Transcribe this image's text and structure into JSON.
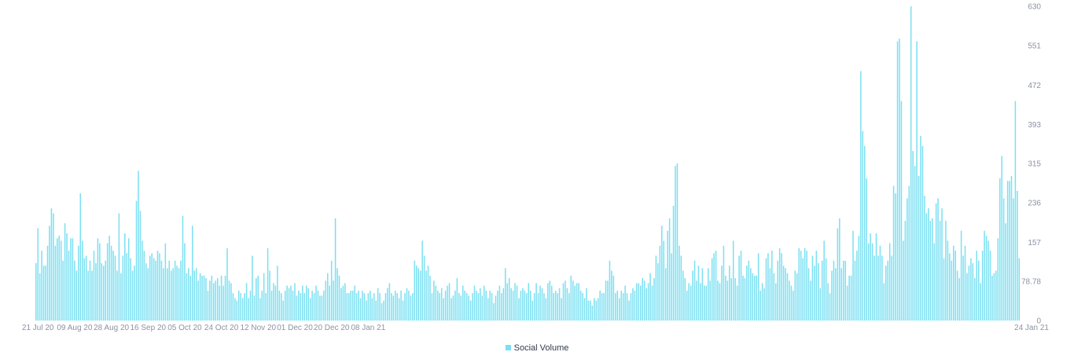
{
  "chart_data": {
    "type": "bar",
    "x_start": "2020-07-20",
    "x_end": "2021-01-23",
    "x_ticks": [
      "21 Jul 20",
      "09 Aug 20",
      "28 Aug 20",
      "16 Sep 20",
      "05 Oct 20",
      "24 Oct 20",
      "12 Nov 20",
      "01 Dec 20",
      "20 Dec 20",
      "08 Jan 21",
      "24 Jan 21"
    ],
    "y_ticks": [
      "0",
      "78.78",
      "157",
      "236",
      "315",
      "393",
      "472",
      "551",
      "630"
    ],
    "ylim": [
      0,
      630
    ],
    "grid": false,
    "legend_position": "bottom",
    "bar_color": "#7be0f2",
    "series": [
      {
        "name": "Social Volume",
        "values": [
          115,
          185,
          95,
          140,
          110,
          110,
          150,
          190,
          225,
          215,
          150,
          165,
          170,
          160,
          120,
          195,
          175,
          140,
          165,
          165,
          120,
          100,
          150,
          255,
          160,
          125,
          130,
          100,
          120,
          100,
          140,
          115,
          165,
          155,
          115,
          110,
          120,
          155,
          170,
          150,
          140,
          130,
          100,
          215,
          95,
          130,
          175,
          135,
          165,
          125,
          100,
          110,
          240,
          300,
          220,
          160,
          140,
          115,
          105,
          130,
          135,
          125,
          120,
          140,
          135,
          120,
          105,
          155,
          105,
          120,
          100,
          105,
          120,
          110,
          105,
          120,
          210,
          155,
          95,
          105,
          90,
          190,
          100,
          105,
          80,
          95,
          90,
          90,
          85,
          60,
          80,
          90,
          75,
          80,
          85,
          70,
          90,
          70,
          90,
          145,
          80,
          75,
          55,
          45,
          40,
          60,
          55,
          45,
          55,
          75,
          45,
          60,
          130,
          50,
          85,
          90,
          45,
          60,
          95,
          55,
          145,
          100,
          60,
          75,
          70,
          110,
          60,
          55,
          40,
          60,
          70,
          65,
          70,
          60,
          75,
          50,
          60,
          55,
          70,
          55,
          70,
          65,
          45,
          60,
          55,
          70,
          60,
          50,
          50,
          60,
          80,
          95,
          70,
          120,
          80,
          205,
          105,
          90,
          65,
          70,
          75,
          55,
          55,
          60,
          60,
          70,
          55,
          60,
          45,
          60,
          55,
          40,
          55,
          60,
          45,
          55,
          40,
          65,
          55,
          35,
          40,
          55,
          65,
          75,
          55,
          50,
          60,
          55,
          45,
          60,
          40,
          55,
          65,
          60,
          50,
          55,
          120,
          110,
          105,
          100,
          160,
          130,
          100,
          110,
          90,
          55,
          80,
          70,
          60,
          55,
          65,
          45,
          60,
          70,
          75,
          45,
          50,
          60,
          85,
          55,
          50,
          70,
          60,
          55,
          50,
          40,
          55,
          70,
          60,
          55,
          65,
          50,
          70,
          60,
          45,
          60,
          55,
          35,
          50,
          60,
          70,
          55,
          65,
          105,
          75,
          85,
          65,
          60,
          75,
          70,
          45,
          60,
          65,
          60,
          55,
          75,
          60,
          40,
          55,
          75,
          55,
          70,
          65,
          55,
          45,
          75,
          80,
          70,
          55,
          60,
          55,
          65,
          45,
          75,
          80,
          65,
          55,
          90,
          80,
          70,
          75,
          75,
          60,
          55,
          45,
          65,
          40,
          40,
          30,
          45,
          40,
          45,
          60,
          55,
          55,
          80,
          80,
          120,
          100,
          90,
          55,
          60,
          45,
          60,
          55,
          70,
          55,
          40,
          55,
          65,
          60,
          75,
          75,
          70,
          85,
          80,
          65,
          75,
          95,
          70,
          85,
          130,
          115,
          150,
          190,
          160,
          105,
          180,
          205,
          135,
          230,
          310,
          315,
          150,
          130,
          100,
          85,
          60,
          75,
          70,
          100,
          120,
          80,
          110,
          75,
          105,
          70,
          70,
          105,
          80,
          125,
          135,
          140,
          80,
          75,
          110,
          150,
          90,
          80,
          110,
          85,
          160,
          85,
          70,
          130,
          140,
          90,
          85,
          110,
          120,
          105,
          95,
          90,
          90,
          135,
          60,
          75,
          65,
          125,
          135,
          105,
          140,
          95,
          75,
          120,
          145,
          135,
          110,
          105,
          95,
          80,
          70,
          60,
          100,
          95,
          145,
          140,
          125,
          145,
          140,
          105,
          80,
          130,
          110,
          140,
          115,
          65,
          120,
          160,
          125,
          75,
          55,
          100,
          120,
          105,
          185,
          205,
          105,
          120,
          120,
          70,
          90,
          90,
          180,
          120,
          140,
          170,
          500,
          380,
          350,
          285,
          155,
          175,
          155,
          130,
          175,
          130,
          150,
          130,
          75,
          110,
          120,
          155,
          130,
          270,
          255,
          560,
          565,
          440,
          160,
          200,
          245,
          270,
          630,
          340,
          310,
          560,
          290,
          370,
          350,
          250,
          215,
          225,
          200,
          205,
          155,
          235,
          245,
          200,
          225,
          125,
          200,
          160,
          135,
          120,
          150,
          140,
          100,
          85,
          180,
          130,
          150,
          95,
          110,
          125,
          115,
          85,
          140,
          120,
          75,
          140,
          180,
          170,
          160,
          140,
          90,
          95,
          100,
          165,
          285,
          330,
          245,
          195,
          280,
          280,
          290,
          245,
          440,
          260,
          125
        ]
      }
    ]
  }
}
